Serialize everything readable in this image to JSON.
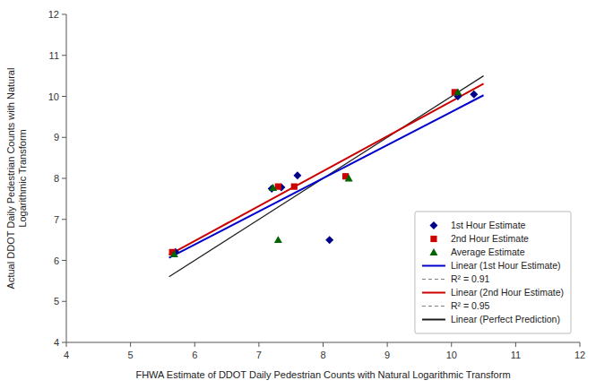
{
  "chart_data": {
    "type": "scatter",
    "title": "",
    "xlabel": "FHWA Estimate of DDOT Daily Pedestrian Counts with Natural Logarithmic Transform",
    "ylabel": "Actual DDOT Daily Pedestrian Counts with Natural\nLogarithmic Transform",
    "xlim": [
      4,
      12
    ],
    "ylim": [
      4,
      12
    ],
    "xticks": [
      4,
      5,
      6,
      7,
      8,
      9,
      10,
      11,
      12
    ],
    "yticks": [
      4,
      5,
      6,
      7,
      8,
      9,
      10,
      11,
      12
    ],
    "grid": false,
    "legend": "lower right",
    "series": [
      {
        "name": "1st Hour Estimate",
        "type": "scatter",
        "marker": "diamond",
        "color": "#00008B",
        "x": [
          5.7,
          7.2,
          7.35,
          7.6,
          8.1,
          10.1,
          10.35
        ],
        "values": [
          6.2,
          7.75,
          7.78,
          8.07,
          6.5,
          10.0,
          10.05
        ]
      },
      {
        "name": "2nd Hour Estimate",
        "type": "scatter",
        "marker": "square",
        "color": "#CC0000",
        "x": [
          5.65,
          7.3,
          7.55,
          8.35,
          10.05
        ],
        "values": [
          6.2,
          7.8,
          7.8,
          8.05,
          10.1
        ]
      },
      {
        "name": "Average Estimate",
        "type": "scatter",
        "marker": "triangle",
        "color": "#006400",
        "x": [
          5.68,
          7.22,
          7.3,
          8.4,
          10.1
        ],
        "values": [
          6.15,
          7.77,
          6.5,
          8.0,
          10.1
        ]
      },
      {
        "name": "Linear (1st Hour Estimate)",
        "type": "line",
        "line_style": "solid",
        "color": "#0000CC",
        "x": [
          5.6,
          10.5
        ],
        "values": [
          6.0608,
          10.0276
        ],
        "r2_label": "R² = 0.91"
      },
      {
        "name": "Linear (2nd Hour Estimate)",
        "type": "line",
        "line_style": "solid",
        "color": "#CC0000",
        "x": [
          5.6,
          10.5
        ],
        "values": [
          6.1331,
          10.3068
        ],
        "r2_label": "R² = 0.95"
      },
      {
        "name": "Linear (Perfect Prediction)",
        "type": "line",
        "line_style": "solid",
        "color": "#1C1C1C",
        "x": [
          5.6,
          10.5
        ],
        "values": [
          5.6,
          10.5
        ]
      }
    ]
  }
}
